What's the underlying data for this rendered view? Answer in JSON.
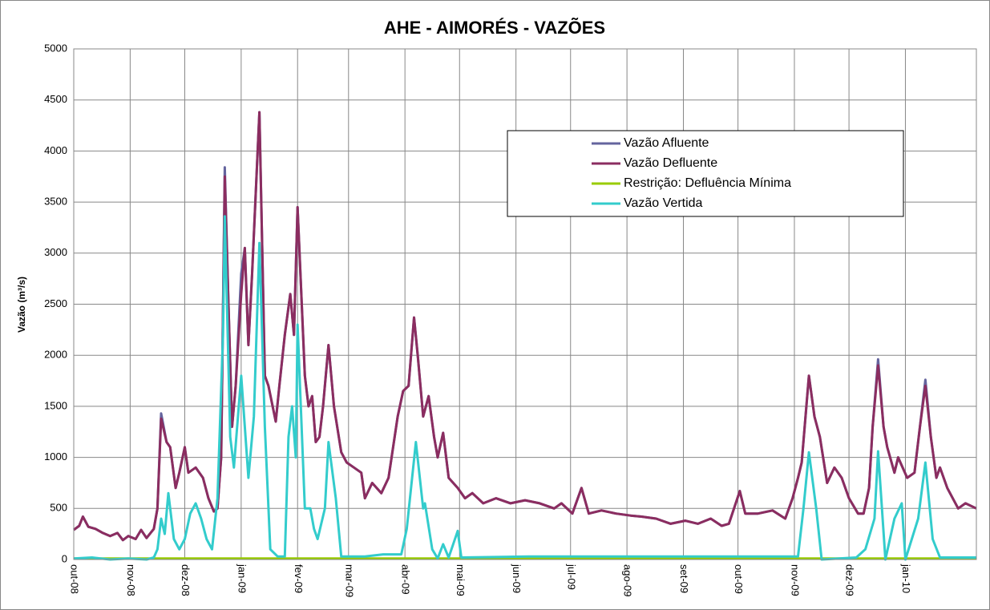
{
  "chart_data": {
    "type": "line",
    "title": "AHE - AIMORÉS - VAZÕES",
    "y_label": "Vazão (m³/s)",
    "xlim": [
      0,
      496
    ],
    "ylim": [
      0,
      5000
    ],
    "yticks": [
      0,
      500,
      1000,
      1500,
      2000,
      2500,
      3000,
      3500,
      4000,
      4500,
      5000
    ],
    "xticks": [
      {
        "value": 0,
        "label": "out-08"
      },
      {
        "value": 31,
        "label": "nov-08"
      },
      {
        "value": 61,
        "label": "dez-08"
      },
      {
        "value": 92,
        "label": "jan-09"
      },
      {
        "value": 123,
        "label": "fev-09"
      },
      {
        "value": 151,
        "label": "mar-09"
      },
      {
        "value": 182,
        "label": "abr-09"
      },
      {
        "value": 212,
        "label": "mai-09"
      },
      {
        "value": 243,
        "label": "jun-09"
      },
      {
        "value": 273,
        "label": "jul-09"
      },
      {
        "value": 304,
        "label": "ago-09"
      },
      {
        "value": 335,
        "label": "set-09"
      },
      {
        "value": 365,
        "label": "out-09"
      },
      {
        "value": 396,
        "label": "nov-09"
      },
      {
        "value": 426,
        "label": "dez-09"
      },
      {
        "value": 457,
        "label": "jan-10"
      }
    ],
    "grid": true,
    "series": [
      {
        "name": "Vazão Afluente",
        "color": "#64649e",
        "x": [
          0,
          3,
          5,
          8,
          12,
          16,
          20,
          24,
          27,
          30,
          34,
          37,
          40,
          44,
          46,
          48,
          51,
          53,
          56,
          58,
          61,
          63,
          67,
          71,
          74,
          77,
          79,
          81,
          83,
          85,
          87,
          89,
          92,
          94,
          96,
          98,
          102,
          105,
          107,
          111,
          113,
          116,
          119,
          121,
          123,
          127,
          129,
          131,
          133,
          135,
          137,
          140,
          143,
          147,
          150,
          154,
          158,
          160,
          164,
          169,
          173,
          178,
          181,
          184,
          187,
          189,
          192,
          195,
          198,
          200,
          203,
          206,
          211,
          215,
          219,
          225,
          232,
          240,
          248,
          256,
          264,
          268,
          274,
          279,
          283,
          290,
          298,
          306,
          312,
          320,
          328,
          336,
          343,
          350,
          356,
          360,
          366,
          369,
          376,
          384,
          391,
          395,
          398,
          400,
          404,
          407,
          410,
          414,
          418,
          422,
          426,
          431,
          434,
          437,
          439,
          442,
          445,
          447,
          451,
          453,
          458,
          462,
          465,
          468,
          471,
          474,
          476,
          480,
          486,
          490,
          496
        ],
        "values": [
          290,
          330,
          420,
          320,
          300,
          260,
          230,
          260,
          190,
          230,
          200,
          290,
          210,
          300,
          500,
          1430,
          1150,
          1100,
          700,
          850,
          1100,
          850,
          900,
          800,
          600,
          470,
          500,
          1000,
          3840,
          2500,
          1300,
          1700,
          2800,
          3050,
          2100,
          2800,
          4380,
          1800,
          1700,
          1350,
          1700,
          2200,
          2600,
          2200,
          3450,
          1800,
          1500,
          1600,
          1150,
          1200,
          1500,
          2100,
          1500,
          1050,
          950,
          900,
          850,
          600,
          750,
          650,
          800,
          1400,
          1650,
          1700,
          2370,
          2000,
          1400,
          1600,
          1200,
          1000,
          1240,
          800,
          700,
          600,
          650,
          550,
          600,
          550,
          580,
          550,
          500,
          550,
          450,
          700,
          450,
          480,
          450,
          430,
          420,
          400,
          350,
          380,
          350,
          400,
          330,
          350,
          670,
          450,
          450,
          480,
          400,
          600,
          800,
          950,
          1800,
          1400,
          1200,
          750,
          900,
          800,
          600,
          450,
          450,
          700,
          1300,
          1960,
          1300,
          1100,
          850,
          1000,
          800,
          850,
          1300,
          1760,
          1200,
          800,
          900,
          700,
          500,
          550,
          500
        ]
      },
      {
        "name": "Vazão Defluente",
        "color": "#8b2d60",
        "x": [
          0,
          3,
          5,
          8,
          12,
          16,
          20,
          24,
          27,
          30,
          34,
          37,
          40,
          44,
          46,
          48,
          51,
          53,
          56,
          58,
          61,
          63,
          67,
          71,
          74,
          77,
          79,
          81,
          83,
          85,
          87,
          89,
          92,
          94,
          96,
          98,
          102,
          105,
          107,
          111,
          113,
          116,
          119,
          121,
          123,
          127,
          129,
          131,
          133,
          135,
          137,
          140,
          143,
          147,
          150,
          154,
          158,
          160,
          164,
          169,
          173,
          178,
          181,
          184,
          187,
          189,
          192,
          195,
          198,
          200,
          203,
          206,
          211,
          215,
          219,
          225,
          232,
          240,
          248,
          256,
          264,
          268,
          274,
          279,
          283,
          290,
          298,
          306,
          312,
          320,
          328,
          336,
          343,
          350,
          356,
          360,
          366,
          369,
          376,
          384,
          391,
          395,
          398,
          400,
          404,
          407,
          410,
          414,
          418,
          422,
          426,
          431,
          434,
          437,
          439,
          442,
          445,
          447,
          451,
          453,
          458,
          462,
          465,
          468,
          471,
          474,
          476,
          480,
          486,
          490,
          496
        ],
        "values": [
          290,
          330,
          420,
          320,
          300,
          260,
          230,
          260,
          190,
          230,
          200,
          290,
          210,
          300,
          500,
          1380,
          1150,
          1100,
          700,
          850,
          1100,
          850,
          900,
          800,
          600,
          470,
          500,
          1000,
          3750,
          2500,
          1300,
          1700,
          2600,
          3050,
          2100,
          2800,
          4380,
          1800,
          1700,
          1350,
          1700,
          2200,
          2600,
          2200,
          3450,
          1800,
          1500,
          1600,
          1150,
          1200,
          1500,
          2100,
          1500,
          1050,
          950,
          900,
          850,
          600,
          750,
          650,
          800,
          1400,
          1650,
          1700,
          2370,
          2000,
          1400,
          1600,
          1200,
          1000,
          1240,
          800,
          700,
          600,
          650,
          550,
          600,
          550,
          580,
          550,
          500,
          550,
          450,
          700,
          450,
          480,
          450,
          430,
          420,
          400,
          350,
          380,
          350,
          400,
          330,
          350,
          670,
          450,
          450,
          480,
          400,
          600,
          800,
          950,
          1800,
          1400,
          1200,
          750,
          900,
          800,
          600,
          450,
          450,
          700,
          1300,
          1900,
          1300,
          1100,
          850,
          1000,
          800,
          850,
          1300,
          1700,
          1200,
          800,
          900,
          700,
          500,
          550,
          500
        ]
      },
      {
        "name": "Restrição: Defluência Mínima",
        "color": "#99cc00",
        "x": [
          0,
          496
        ],
        "values": [
          10,
          10
        ]
      },
      {
        "name": "Vazão Vertida",
        "color": "#33cccc",
        "x": [
          0,
          10,
          20,
          30,
          40,
          44,
          46,
          48,
          50,
          52,
          55,
          58,
          61,
          64,
          67,
          70,
          73,
          76,
          79,
          82,
          83,
          86,
          88,
          92,
          96,
          99,
          102,
          105,
          108,
          112,
          116,
          118,
          120,
          122,
          123,
          127,
          130,
          132,
          134,
          138,
          140,
          144,
          147,
          160,
          170,
          180,
          183,
          188,
          192,
          193,
          197,
          200,
          203,
          206,
          211,
          213,
          250,
          300,
          350,
          398,
          401,
          404,
          408,
          411,
          430,
          435,
          440,
          442,
          446,
          451,
          455,
          457,
          464,
          468,
          472,
          476,
          496
        ],
        "values": [
          10,
          20,
          0,
          10,
          0,
          20,
          100,
          400,
          250,
          650,
          200,
          100,
          200,
          450,
          550,
          400,
          200,
          100,
          600,
          2200,
          3360,
          1200,
          900,
          1800,
          800,
          1400,
          3100,
          1300,
          100,
          30,
          30,
          1200,
          1500,
          1000,
          2300,
          500,
          500,
          300,
          200,
          500,
          1150,
          600,
          30,
          30,
          50,
          50,
          300,
          1150,
          500,
          550,
          100,
          10,
          150,
          20,
          280,
          20,
          30,
          30,
          30,
          30,
          500,
          1050,
          500,
          0,
          20,
          100,
          400,
          1060,
          0,
          400,
          550,
          0,
          400,
          950,
          200,
          20,
          20
        ]
      }
    ]
  }
}
